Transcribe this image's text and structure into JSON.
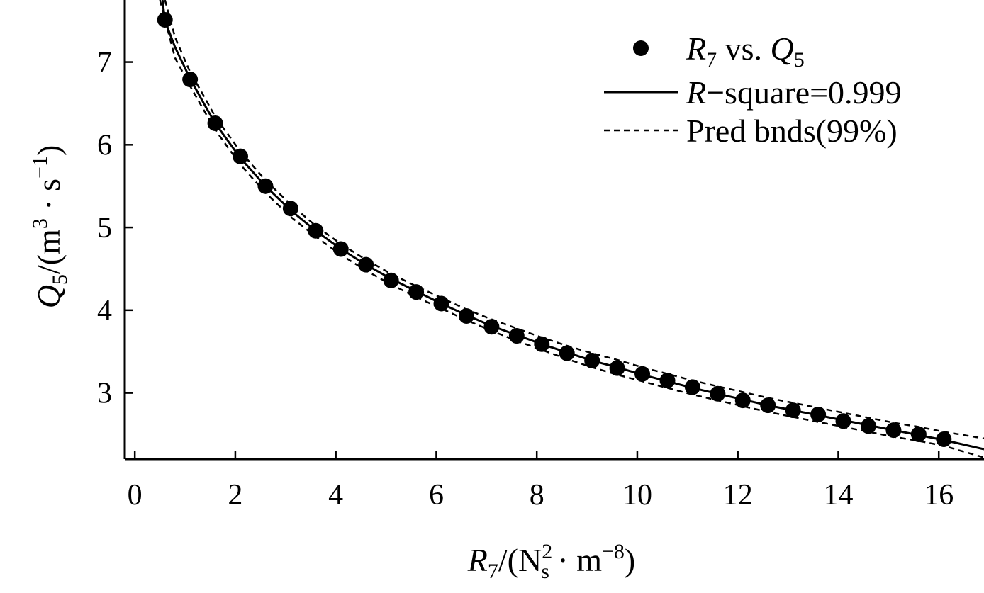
{
  "chart_data": {
    "type": "scatter",
    "xlabel": {
      "var": "R",
      "var_sub": "7",
      "open": "/(N",
      "unit_sup": "2",
      "unit_sub": "s",
      "mid": " · m",
      "m_sup": "−8",
      "close": ")"
    },
    "ylabel": {
      "var": "Q",
      "var_sub": "5",
      "open": "/(m",
      "m_sup": "3",
      "mid": " · s",
      "s_sup": "−1",
      "close": ")"
    },
    "xlim": [
      -0.2,
      16.9
    ],
    "ylim": [
      2.2,
      7.75
    ],
    "xticks": [
      "0",
      "2",
      "4",
      "6",
      "8",
      "10",
      "12",
      "14",
      "16"
    ],
    "xtick_values": [
      0,
      2,
      4,
      6,
      8,
      10,
      12,
      14,
      16
    ],
    "yticks": [
      "3",
      "4",
      "5",
      "6",
      "7"
    ],
    "ytick_values": [
      3,
      4,
      5,
      6,
      7
    ],
    "legend_position": "top-right",
    "legend": {
      "points": {
        "var1": "R",
        "sub1": "7",
        "mid": " vs. ",
        "var2": "Q",
        "sub2": "5"
      },
      "fit": {
        "var": "R",
        "text": "−square=0.999"
      },
      "bounds": {
        "text": "Pred bnds(99%)"
      }
    },
    "series": [
      {
        "type": "points",
        "x": [
          0.6,
          1.1,
          1.6,
          2.1,
          2.6,
          3.1,
          3.6,
          4.1,
          4.6,
          5.1,
          5.6,
          6.1,
          6.6,
          7.1,
          7.6,
          8.1,
          8.6,
          9.1,
          9.6,
          10.1,
          10.6,
          11.1,
          11.6,
          12.1,
          12.6,
          13.1,
          13.6,
          14.1,
          14.6,
          15.1,
          15.6,
          16.1
        ],
        "y": [
          7.51,
          6.79,
          6.26,
          5.86,
          5.5,
          5.23,
          4.96,
          4.74,
          4.55,
          4.36,
          4.22,
          4.08,
          3.93,
          3.8,
          3.69,
          3.59,
          3.48,
          3.39,
          3.3,
          3.23,
          3.15,
          3.07,
          2.99,
          2.91,
          2.85,
          2.79,
          2.74,
          2.66,
          2.6,
          2.55,
          2.5,
          2.44
        ]
      },
      {
        "type": "line",
        "x": [
          0.55,
          0.6,
          0.8,
          1.1,
          1.4,
          1.6,
          2.1,
          2.6,
          3.1,
          3.6,
          4.1,
          4.6,
          5.1,
          5.6,
          6.1,
          6.6,
          7.1,
          7.6,
          8.1,
          8.6,
          9.1,
          9.6,
          10.1,
          10.6,
          11.1,
          11.6,
          12.1,
          12.6,
          13.1,
          13.6,
          14.1,
          14.6,
          15.1,
          15.6,
          16.1,
          16.9
        ],
        "y": [
          7.75,
          7.5,
          7.18,
          6.8,
          6.47,
          6.26,
          5.84,
          5.5,
          5.21,
          4.96,
          4.74,
          4.55,
          4.38,
          4.23,
          4.08,
          3.94,
          3.81,
          3.7,
          3.59,
          3.49,
          3.39,
          3.31,
          3.22,
          3.14,
          3.06,
          2.99,
          2.92,
          2.85,
          2.79,
          2.73,
          2.67,
          2.61,
          2.55,
          2.49,
          2.43,
          2.32
        ]
      },
      {
        "type": "dashed",
        "x": [
          0.6,
          0.8,
          1.1,
          1.4,
          1.6,
          2.1,
          2.6,
          3.1,
          3.6,
          4.1,
          4.6,
          5.1,
          5.6,
          6.1,
          6.6,
          7.1,
          7.6,
          8.1,
          8.6,
          9.1,
          9.6,
          10.1,
          10.6,
          11.1,
          11.6,
          12.1,
          12.6,
          13.1,
          13.6,
          14.1,
          14.6,
          15.1,
          15.6,
          16.1,
          16.9
        ],
        "y": [
          7.75,
          7.3,
          6.88,
          6.56,
          6.34,
          5.92,
          5.57,
          5.28,
          5.02,
          4.8,
          4.61,
          4.44,
          4.29,
          4.15,
          4.01,
          3.89,
          3.78,
          3.67,
          3.57,
          3.48,
          3.4,
          3.31,
          3.23,
          3.15,
          3.08,
          3.01,
          2.94,
          2.88,
          2.82,
          2.76,
          2.7,
          2.64,
          2.59,
          2.53,
          2.45
        ]
      },
      {
        "type": "dashed",
        "x": [
          0.5,
          0.8,
          1.1,
          1.4,
          1.6,
          2.1,
          2.6,
          3.1,
          3.6,
          4.1,
          4.6,
          5.1,
          5.6,
          6.1,
          6.6,
          7.1,
          7.6,
          8.1,
          8.6,
          9.1,
          9.6,
          10.1,
          10.6,
          11.1,
          11.6,
          12.1,
          12.6,
          13.1,
          13.6,
          14.1,
          14.6,
          15.1,
          15.6,
          16.1,
          16.9
        ],
        "y": [
          7.75,
          7.05,
          6.71,
          6.39,
          6.18,
          5.76,
          5.42,
          5.13,
          4.89,
          4.67,
          4.48,
          4.31,
          4.16,
          4.02,
          3.88,
          3.75,
          3.63,
          3.52,
          3.41,
          3.31,
          3.22,
          3.14,
          3.06,
          2.98,
          2.91,
          2.84,
          2.77,
          2.71,
          2.65,
          2.59,
          2.53,
          2.47,
          2.42,
          2.36,
          2.22
        ]
      }
    ]
  }
}
